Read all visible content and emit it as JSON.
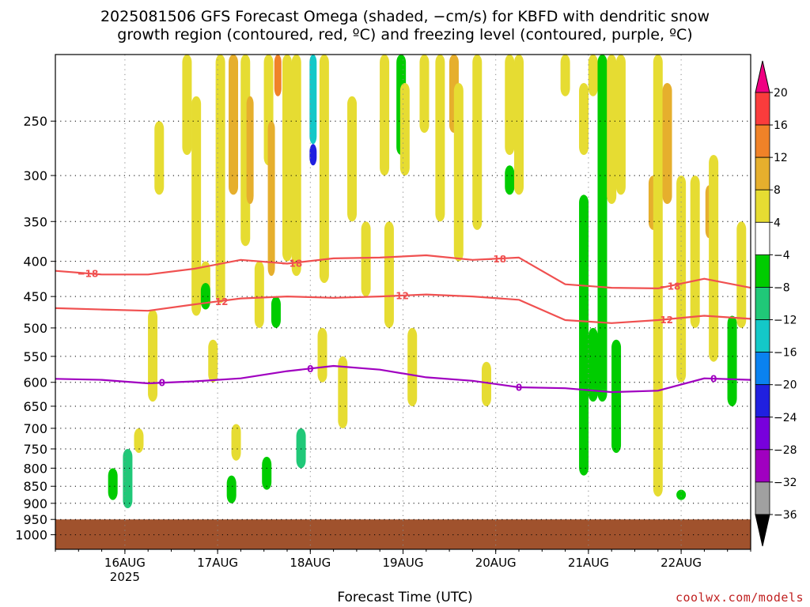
{
  "title_line1": "2025081506 GFS Forecast Omega (shaded, −cm/s) for KBFD with dendritic snow",
  "title_line2": "growth region (contoured, red, ºC) and freezing level (contoured, purple, ºC)",
  "xlabel": "Forecast Time (UTC)",
  "credit": "coolwx.com/models",
  "chart_data": {
    "type": "heatmap",
    "title": "2025081506 GFS Forecast Omega (shaded, −cm/s) for KBFD with dendritic snow growth region (contoured, red, ºC) and freezing level (contoured, purple, ºC)",
    "xlabel": "Forecast Time (UTC)",
    "ylabel": "",
    "y_scale": "log-pressure (hPa), inverted",
    "ylim": [
      1050,
      200
    ],
    "y_ticks": [
      250,
      300,
      350,
      400,
      450,
      500,
      550,
      600,
      650,
      700,
      750,
      800,
      850,
      900,
      950,
      1000
    ],
    "x_range_days": [
      "2025-08-15T06Z",
      "2025-08-22T18Z"
    ],
    "x_ticks": [
      {
        "label": "16AUG",
        "sub": "2025",
        "t": "2025-08-16T00Z"
      },
      {
        "label": "17AUG",
        "sub": "",
        "t": "2025-08-17T00Z"
      },
      {
        "label": "18AUG",
        "sub": "",
        "t": "2025-08-18T00Z"
      },
      {
        "label": "19AUG",
        "sub": "",
        "t": "2025-08-19T00Z"
      },
      {
        "label": "20AUG",
        "sub": "",
        "t": "2025-08-20T00Z"
      },
      {
        "label": "21AUG",
        "sub": "",
        "t": "2025-08-21T00Z"
      },
      {
        "label": "22AUG",
        "sub": "",
        "t": "2025-08-22T00Z"
      }
    ],
    "grid": true,
    "ground_color": "#a0522d",
    "ground_top_pressure_hPa": 950,
    "colorbar": {
      "levels": [
        -36,
        -32,
        -28,
        -24,
        -20,
        -16,
        -12,
        -8,
        -4,
        4,
        8,
        12,
        16,
        20
      ],
      "colors": [
        "#000000",
        "#a0a0a0",
        "#a000c0",
        "#7800dc",
        "#2020e0",
        "#0a82f0",
        "#14c8c8",
        "#20c878",
        "#00cc00",
        "#ffffff",
        "#e6dc32",
        "#e6af2d",
        "#f08228",
        "#fa3c3c",
        "#f00082"
      ],
      "position": "right"
    },
    "omega_cells": [
      {
        "day": 0.62,
        "p1": 800,
        "p2": 890,
        "v": -7
      },
      {
        "day": 0.78,
        "p1": 750,
        "p2": 915,
        "v": -9
      },
      {
        "day": 0.9,
        "p1": 700,
        "p2": 760,
        "v": 5
      },
      {
        "day": 1.05,
        "p1": 470,
        "p2": 640,
        "v": 5
      },
      {
        "day": 1.12,
        "p1": 250,
        "p2": 320,
        "v": 6
      },
      {
        "day": 1.42,
        "p1": 200,
        "p2": 280,
        "v": 5
      },
      {
        "day": 1.52,
        "p1": 230,
        "p2": 480,
        "v": 6
      },
      {
        "day": 1.62,
        "p1": 400,
        "p2": 470,
        "v": 5
      },
      {
        "day": 1.62,
        "p1": 430,
        "p2": 470,
        "v": -6
      },
      {
        "day": 1.7,
        "p1": 520,
        "p2": 600,
        "v": 5
      },
      {
        "day": 1.78,
        "p1": 200,
        "p2": 460,
        "v": 6
      },
      {
        "day": 1.92,
        "p1": 200,
        "p2": 320,
        "v": 9
      },
      {
        "day": 1.9,
        "p1": 820,
        "p2": 900,
        "v": -7
      },
      {
        "day": 1.95,
        "p1": 690,
        "p2": 780,
        "v": 5
      },
      {
        "day": 2.05,
        "p1": 200,
        "p2": 380,
        "v": 6
      },
      {
        "day": 2.1,
        "p1": 230,
        "p2": 330,
        "v": 10
      },
      {
        "day": 2.2,
        "p1": 400,
        "p2": 500,
        "v": 5
      },
      {
        "day": 2.3,
        "p1": 200,
        "p2": 290,
        "v": 6
      },
      {
        "day": 2.33,
        "p1": 250,
        "p2": 420,
        "v": 10
      },
      {
        "day": 2.4,
        "p1": 200,
        "p2": 230,
        "v": 14
      },
      {
        "day": 2.28,
        "p1": 770,
        "p2": 860,
        "v": -6
      },
      {
        "day": 2.38,
        "p1": 450,
        "p2": 500,
        "v": -5
      },
      {
        "day": 2.5,
        "p1": 200,
        "p2": 400,
        "v": 6
      },
      {
        "day": 2.6,
        "p1": 200,
        "p2": 420,
        "v": 6
      },
      {
        "day": 2.65,
        "p1": 700,
        "p2": 800,
        "v": -9
      },
      {
        "day": 2.78,
        "p1": 200,
        "p2": 270,
        "v": -14
      },
      {
        "day": 2.78,
        "p1": 270,
        "p2": 290,
        "v": -22
      },
      {
        "day": 2.9,
        "p1": 200,
        "p2": 430,
        "v": 6
      },
      {
        "day": 2.88,
        "p1": 500,
        "p2": 600,
        "v": 5
      },
      {
        "day": 3.1,
        "p1": 550,
        "p2": 700,
        "v": 5
      },
      {
        "day": 3.2,
        "p1": 230,
        "p2": 350,
        "v": 5
      },
      {
        "day": 3.35,
        "p1": 350,
        "p2": 450,
        "v": 5
      },
      {
        "day": 3.55,
        "p1": 200,
        "p2": 300,
        "v": 6
      },
      {
        "day": 3.6,
        "p1": 350,
        "p2": 500,
        "v": 5
      },
      {
        "day": 3.73,
        "p1": 200,
        "p2": 280,
        "v": -8
      },
      {
        "day": 3.77,
        "p1": 220,
        "p2": 300,
        "v": 6
      },
      {
        "day": 3.85,
        "p1": 500,
        "p2": 650,
        "v": 5
      },
      {
        "day": 3.98,
        "p1": 200,
        "p2": 260,
        "v": 5
      },
      {
        "day": 4.15,
        "p1": 200,
        "p2": 350,
        "v": 5
      },
      {
        "day": 4.3,
        "p1": 200,
        "p2": 260,
        "v": 8
      },
      {
        "day": 4.35,
        "p1": 220,
        "p2": 400,
        "v": 6
      },
      {
        "day": 4.55,
        "p1": 200,
        "p2": 360,
        "v": 5
      },
      {
        "day": 4.65,
        "p1": 560,
        "p2": 650,
        "v": 5
      },
      {
        "day": 4.9,
        "p1": 200,
        "p2": 280,
        "v": 6
      },
      {
        "day": 4.9,
        "p1": 290,
        "p2": 320,
        "v": -6
      },
      {
        "day": 5.0,
        "p1": 200,
        "p2": 320,
        "v": 6
      },
      {
        "day": 5.5,
        "p1": 200,
        "p2": 230,
        "v": 6
      },
      {
        "day": 5.7,
        "p1": 320,
        "p2": 820,
        "v": -6
      },
      {
        "day": 5.7,
        "p1": 220,
        "p2": 280,
        "v": 5
      },
      {
        "day": 5.8,
        "p1": 200,
        "p2": 230,
        "v": 5
      },
      {
        "day": 5.8,
        "p1": 500,
        "p2": 640,
        "v": -8
      },
      {
        "day": 5.9,
        "p1": 200,
        "p2": 640,
        "v": -8
      },
      {
        "day": 6.0,
        "p1": 200,
        "p2": 330,
        "v": 5
      },
      {
        "day": 6.05,
        "p1": 520,
        "p2": 760,
        "v": -7
      },
      {
        "day": 6.1,
        "p1": 200,
        "p2": 320,
        "v": 6
      },
      {
        "day": 6.45,
        "p1": 300,
        "p2": 360,
        "v": 8
      },
      {
        "day": 6.5,
        "p1": 200,
        "p2": 880,
        "v": 6
      },
      {
        "day": 6.6,
        "p1": 220,
        "p2": 330,
        "v": 8
      },
      {
        "day": 6.75,
        "p1": 300,
        "p2": 600,
        "v": 6
      },
      {
        "day": 6.75,
        "p1": 860,
        "p2": 890,
        "v": -6
      },
      {
        "day": 6.9,
        "p1": 300,
        "p2": 500,
        "v": 6
      },
      {
        "day": 7.05,
        "p1": 310,
        "p2": 370,
        "v": 11
      },
      {
        "day": 7.1,
        "p1": 280,
        "p2": 560,
        "v": 6
      },
      {
        "day": 7.3,
        "p1": 480,
        "p2": 650,
        "v": -7
      },
      {
        "day": 7.4,
        "p1": 350,
        "p2": 500,
        "v": 5
      }
    ],
    "series": [
      {
        "name": "-18",
        "color": "#f05050",
        "label_days": [
          0.35,
          2.55,
          4.75,
          6.63
        ],
        "t_days": [
          0,
          0.5,
          1,
          1.5,
          2,
          2.5,
          3,
          3.5,
          4,
          4.5,
          5,
          5.5,
          6,
          6.5,
          7,
          7.5
        ],
        "p_hPa": [
          413,
          418,
          418,
          410,
          398,
          403,
          396,
          395,
          392,
          398,
          395,
          432,
          437,
          438,
          424,
          437
        ]
      },
      {
        "name": "-12",
        "color": "#f05050",
        "label_days": [
          1.75,
          3.7,
          6.55
        ],
        "t_days": [
          0,
          0.5,
          1,
          1.5,
          2,
          2.5,
          3,
          3.5,
          4,
          4.5,
          5,
          5.5,
          6,
          6.5,
          7,
          7.5
        ],
        "p_hPa": [
          468,
          470,
          472,
          462,
          453,
          450,
          452,
          450,
          447,
          450,
          455,
          487,
          492,
          487,
          480,
          485
        ]
      },
      {
        "name": "0",
        "color": "#a000c0",
        "label_days": [
          1.15,
          2.75,
          5.0,
          7.1
        ],
        "t_days": [
          0,
          0.5,
          1,
          1.5,
          2,
          2.5,
          3,
          3.5,
          4,
          4.5,
          5,
          5.5,
          6,
          6.5,
          7,
          7.5
        ],
        "p_hPa": [
          593,
          595,
          602,
          598,
          592,
          578,
          568,
          575,
          590,
          597,
          610,
          612,
          620,
          617,
          592,
          595
        ]
      }
    ]
  },
  "colorbar_labels": [
    "20",
    "16",
    "12",
    "8",
    "4",
    "−4",
    "−8",
    "−12",
    "−16",
    "−20",
    "−24",
    "−28",
    "−32",
    "−36"
  ],
  "y_tick_labels": [
    "250",
    "300",
    "350",
    "400",
    "450",
    "500",
    "550",
    "600",
    "650",
    "700",
    "750",
    "800",
    "850",
    "900",
    "950",
    "1000"
  ]
}
